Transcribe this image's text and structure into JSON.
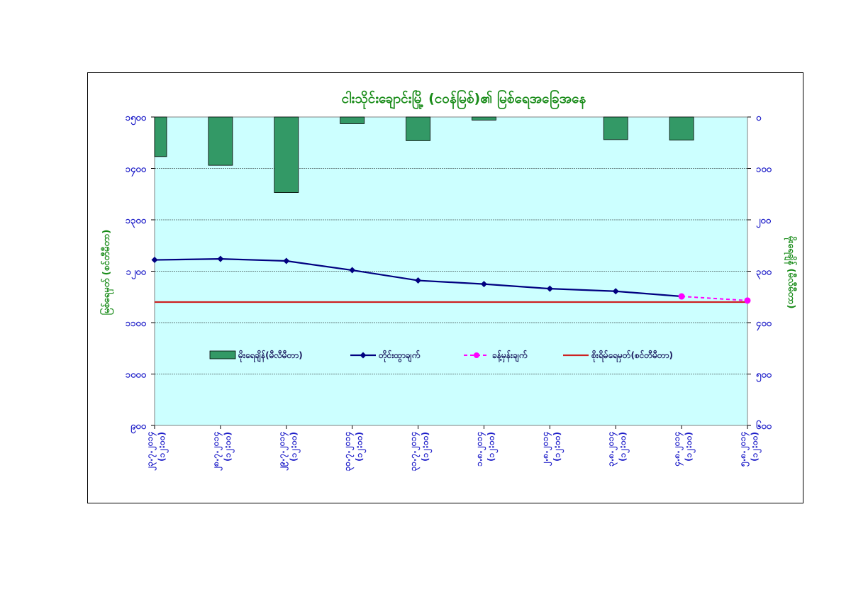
{
  "chart_data": {
    "type": "bar+line",
    "title": "ငါးသိုင်းချောင်းမြို့ (ငဝန်မြစ်)၏ မြစ်ရေအခြေအနေ",
    "categories": [
      [
        "၂၃.၇.၂၀၁၄",
        "(၁၂:၀၀)"
      ],
      [
        "၂၈.၇.၂၀၁၄",
        "(၁၂:၀၀)"
      ],
      [
        "၂၉.၇.၂၀၁၄",
        "(၁၂:၀၀)"
      ],
      [
        "၃၀.၇.၂၀၁၄",
        "(၁၂:၀၀)"
      ],
      [
        "၃၁.၇.၂၀၁၄",
        "(၁၂:၀၀)"
      ],
      [
        "၁.၈.၂၀၁၄",
        "(၁၂:၀၀)"
      ],
      [
        "၂.၈.၂၀၁၄",
        "(၁၂:၀၀)"
      ],
      [
        "၃.၈.၂၀၁၄",
        "(၁၂:၀၀)"
      ],
      [
        "၄.၈.၂၀၁၄",
        "(၁၂:၀၀)"
      ],
      [
        "၅.၈.၂၀၁၄",
        "(၁၂:၀၀)"
      ]
    ],
    "ylabel_left": "မြစ်ရေမှတ် (စင်တီမီတာ)",
    "ylabel_right": "မိုးရေချိန် (မီလီမီတာ)",
    "ylim_left": [
      900,
      1500
    ],
    "yticks_left": [
      {
        "value": 1500,
        "label": "၁၅၀၀"
      },
      {
        "value": 1400,
        "label": "၁၄၀၀"
      },
      {
        "value": 1300,
        "label": "၁၃၀၀"
      },
      {
        "value": 1200,
        "label": "၁၂၀၀"
      },
      {
        "value": 1100,
        "label": "၁၁၀၀"
      },
      {
        "value": 1000,
        "label": "၁၀၀၀"
      },
      {
        "value": 900,
        "label": "၉၀၀"
      }
    ],
    "ylim_right": [
      0,
      600
    ],
    "right_axis_reversed": true,
    "yticks_right": [
      {
        "value": 0,
        "label": "၀"
      },
      {
        "value": 100,
        "label": "၁၀၀"
      },
      {
        "value": 200,
        "label": "၂၀၀"
      },
      {
        "value": 300,
        "label": "၃၀၀"
      },
      {
        "value": 400,
        "label": "၄၀၀"
      },
      {
        "value": 500,
        "label": "၅၀၀"
      },
      {
        "value": 600,
        "label": "၆၀၀"
      }
    ],
    "grid": true,
    "legend_position": "inside-bottom",
    "series": [
      {
        "name": "မိုးရေချိန်(မီလီမီတာ)",
        "kind": "bar",
        "axis": "right",
        "color": "#339966",
        "values": [
          77,
          94,
          147,
          13,
          46,
          6,
          null,
          44,
          45,
          null
        ]
      },
      {
        "name": "တိုင်းထွာချက်",
        "kind": "line",
        "axis": "left",
        "color": "#000080",
        "marker": "diamond",
        "values": [
          1222,
          1224,
          1220,
          1202,
          1182,
          1175,
          1166,
          1161,
          1151,
          null
        ]
      },
      {
        "name": "ခန့်မှန်းချက်",
        "kind": "line-dashed",
        "axis": "left",
        "color": "#ff00ff",
        "marker": "circle",
        "values": [
          null,
          null,
          null,
          null,
          null,
          null,
          null,
          null,
          1151,
          1143
        ]
      },
      {
        "name": "စိုးရိမ်ရေမှတ်(စင်တီမီတာ)",
        "kind": "hline",
        "axis": "left",
        "color": "#cc2222",
        "value": 1140
      }
    ]
  }
}
